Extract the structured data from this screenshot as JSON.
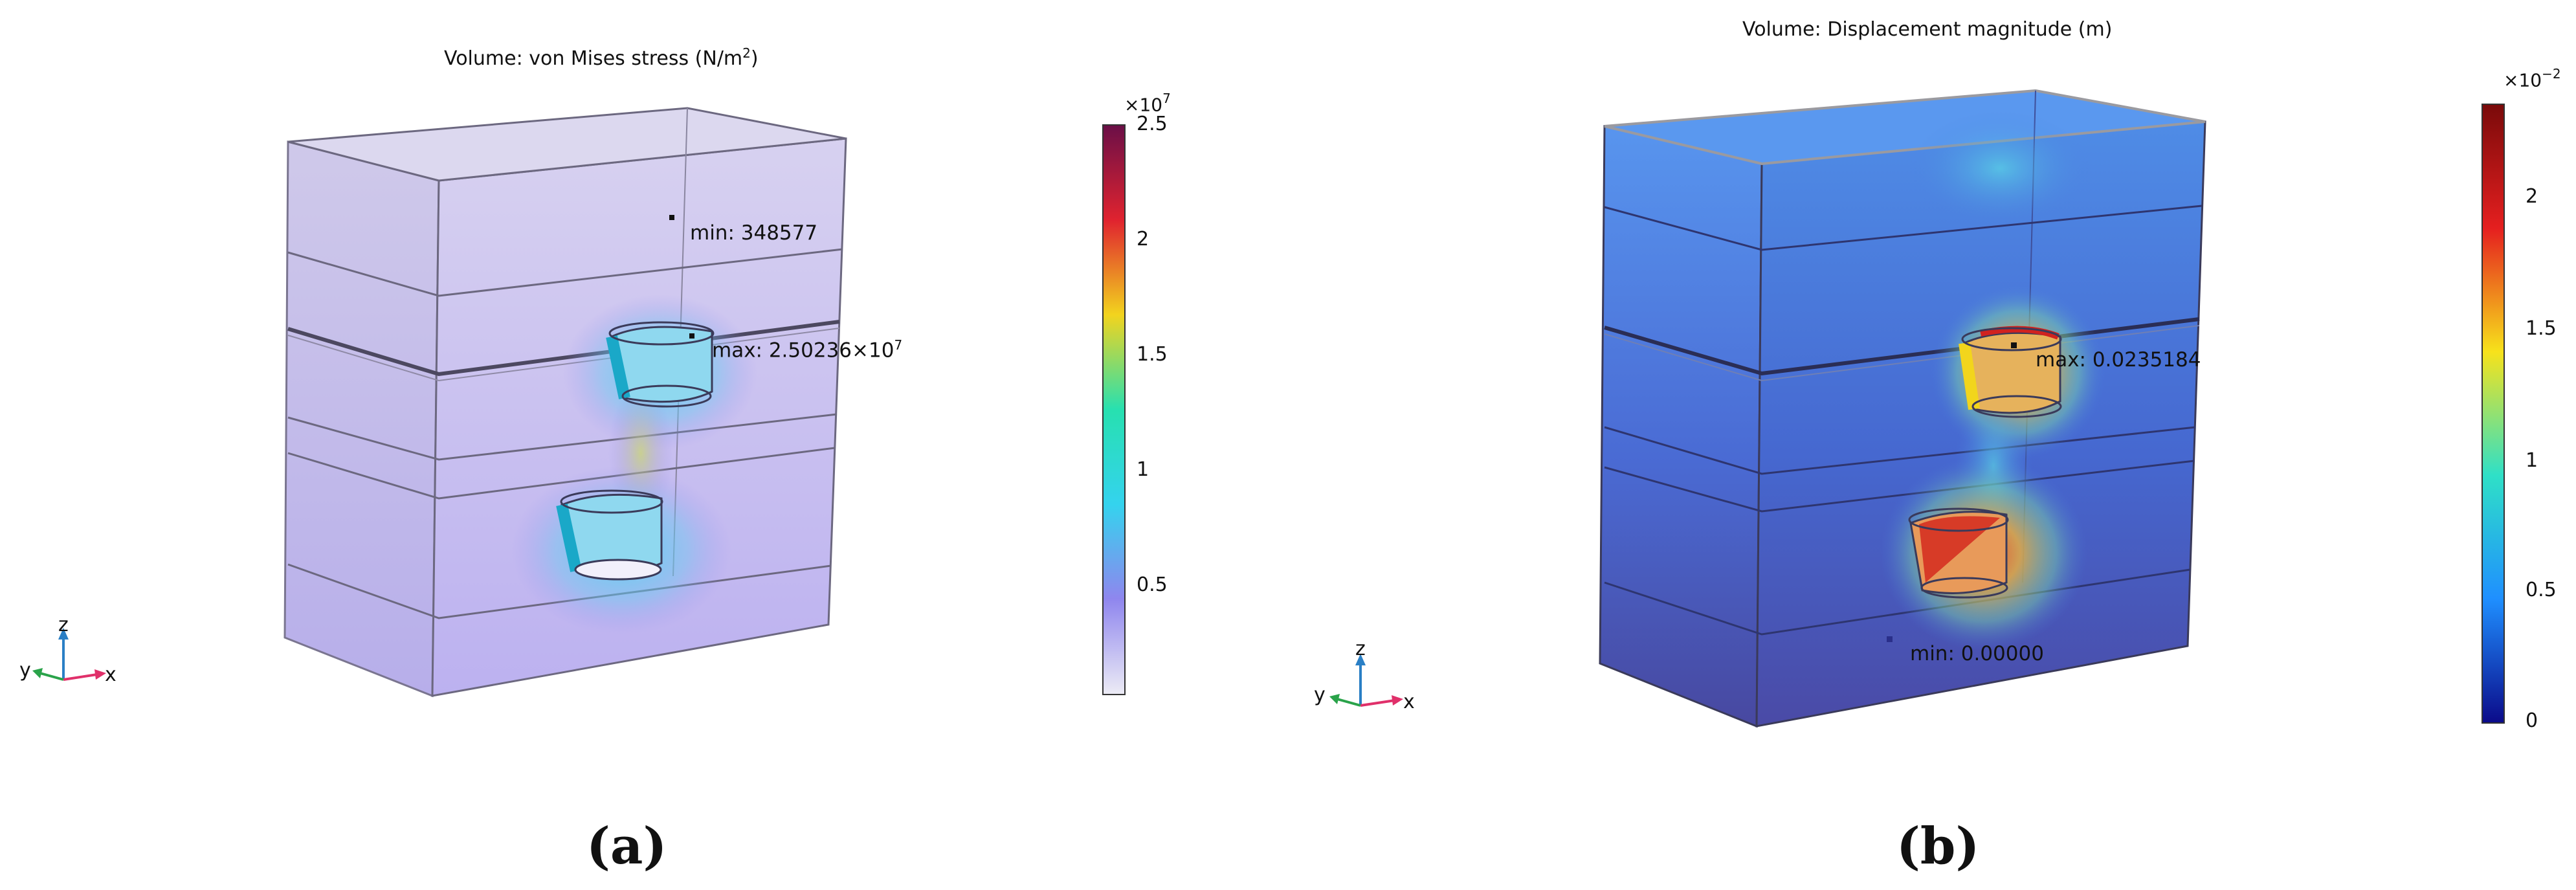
{
  "panels": [
    {
      "title_prefix": "Volume: von Mises stress (N/m",
      "title_sup": "2",
      "title_suffix": ")",
      "min_label": "min: 348577",
      "max_label_base": "max: 2.50236×10",
      "max_label_sup": "7",
      "colorbar": {
        "exponent_base": "×10",
        "exponent_sup": "7",
        "ticks": [
          "2.5",
          "2",
          "1.5",
          "1",
          "0.5"
        ],
        "colors": [
          "#6b0f47",
          "#e0232f",
          "#f2d41e",
          "#27e0b0",
          "#34d3ee",
          "#8f86ee",
          "#ecebf5"
        ]
      },
      "axes": {
        "x": "x",
        "y": "y",
        "z": "z"
      },
      "caption": "(a)"
    },
    {
      "title": "Volume: Displacement magnitude (m)",
      "min_label": "min: 0.00000",
      "max_label": "max: 0.0235184",
      "colorbar": {
        "exponent_base": "×10",
        "exponent_sup": "−2",
        "ticks": [
          "2",
          "1.5",
          "1",
          "0.5",
          "0"
        ],
        "colors": [
          "#7a0a0a",
          "#e51f1f",
          "#f7e21b",
          "#2fe0c7",
          "#1f8fff",
          "#0b0b8a"
        ]
      },
      "axes": {
        "x": "x",
        "y": "y",
        "z": "z"
      },
      "caption": "(b)"
    }
  ]
}
